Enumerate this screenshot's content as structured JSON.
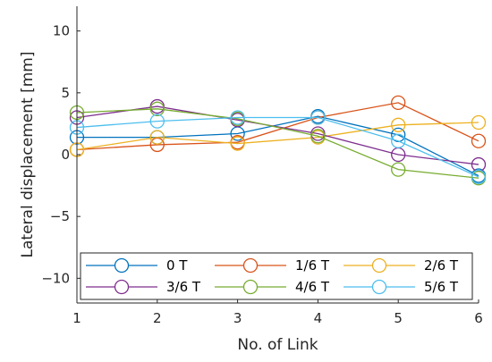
{
  "chart_data": {
    "type": "line",
    "title": "",
    "xlabel": "No. of Link",
    "ylabel": "Lateral displacement [mm]",
    "x": [
      1,
      2,
      3,
      4,
      5,
      6
    ],
    "xlim": [
      1,
      6
    ],
    "ylim": [
      -12,
      12
    ],
    "xticks": [
      1,
      2,
      3,
      4,
      5,
      6
    ],
    "yticks": [
      -10,
      -5,
      0,
      5,
      10
    ],
    "grid": false,
    "marker": "open-circle",
    "legend": {
      "placement": "bottom-inside",
      "columns": 3
    },
    "series": [
      {
        "name": "0 T",
        "color": "#0072BD",
        "values": [
          1.4,
          1.4,
          1.7,
          3.1,
          1.6,
          -1.7
        ]
      },
      {
        "name": "1/6 T",
        "color": "#D95319",
        "values": [
          0.4,
          0.8,
          1.0,
          3.0,
          4.2,
          1.1
        ]
      },
      {
        "name": "2/6 T",
        "color": "#EDB120",
        "values": [
          0.4,
          1.4,
          0.9,
          1.4,
          2.4,
          2.6
        ]
      },
      {
        "name": "3/6 T",
        "color": "#7E2F8E",
        "values": [
          3.0,
          3.9,
          2.8,
          1.7,
          0.0,
          -0.8
        ]
      },
      {
        "name": "4/6 T",
        "color": "#77AC30",
        "values": [
          3.4,
          3.7,
          2.9,
          1.5,
          -1.2,
          -1.9
        ]
      },
      {
        "name": "5/6 T",
        "color": "#4DBEEE",
        "values": [
          2.2,
          2.7,
          3.0,
          3.0,
          1.1,
          -1.8
        ]
      }
    ]
  }
}
